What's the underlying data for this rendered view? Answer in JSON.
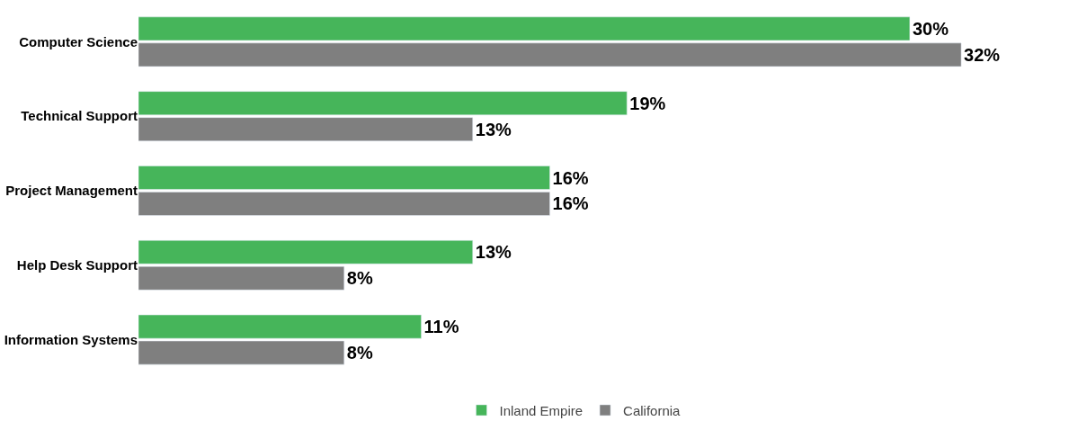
{
  "chart_data": {
    "type": "bar",
    "orientation": "horizontal",
    "categories": [
      "Computer Science",
      "Technical Support",
      "Project Management",
      "Help Desk Support",
      "Information Systems"
    ],
    "series": [
      {
        "name": "Inland Empire",
        "color": "#46b55a",
        "values": [
          30,
          19,
          16,
          13,
          11
        ],
        "value_labels": [
          "30%",
          "19%",
          "16%",
          "13%",
          "11%"
        ]
      },
      {
        "name": "California",
        "color": "#7f7f7f",
        "values": [
          32,
          13,
          16,
          8,
          8
        ],
        "value_labels": [
          "32%",
          "13%",
          "16%",
          "8%",
          "8%"
        ]
      }
    ],
    "legend": "bottom"
  }
}
